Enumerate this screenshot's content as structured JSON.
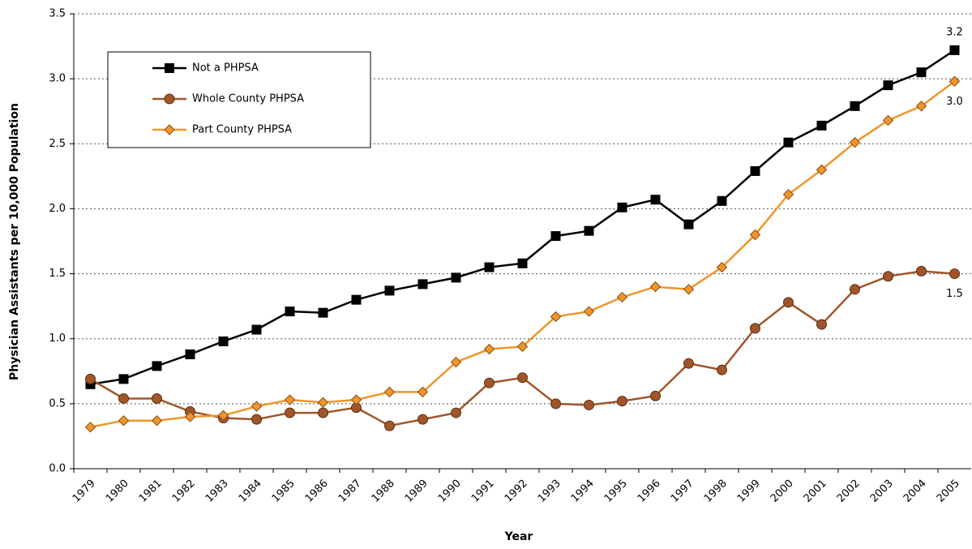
{
  "chart_data": {
    "type": "line",
    "x_label": "Year",
    "y_label": "Physician Assistants per 10,000 Population",
    "categories": [
      "1979",
      "1980",
      "1981",
      "1982",
      "1983",
      "1984",
      "1985",
      "1986",
      "1987",
      "1988",
      "1989",
      "1990",
      "1991",
      "1992",
      "1993",
      "1994",
      "1995",
      "1996",
      "1997",
      "1998",
      "1999",
      "2000",
      "2001",
      "2002",
      "2003",
      "2004",
      "2005"
    ],
    "series": [
      {
        "name": "Not a PHPSA",
        "color": "#000000",
        "marker": "square",
        "values": [
          0.65,
          0.69,
          0.79,
          0.88,
          0.98,
          1.07,
          1.21,
          1.2,
          1.3,
          1.37,
          1.42,
          1.47,
          1.55,
          1.58,
          1.79,
          1.83,
          2.01,
          2.07,
          1.88,
          2.06,
          2.29,
          2.51,
          2.64,
          2.79,
          2.95,
          3.05,
          3.22
        ],
        "value_labels": [
          null,
          null,
          null,
          null,
          null,
          null,
          null,
          null,
          null,
          null,
          null,
          null,
          null,
          null,
          null,
          null,
          null,
          null,
          null,
          null,
          null,
          null,
          null,
          null,
          null,
          null,
          "3.2"
        ]
      },
      {
        "name": "Whole County PHPSA",
        "color": "#a0562a",
        "marker": "circle",
        "values": [
          0.69,
          0.54,
          0.54,
          0.44,
          0.39,
          0.38,
          0.43,
          0.43,
          0.47,
          0.33,
          0.38,
          0.43,
          0.66,
          0.7,
          0.5,
          0.49,
          0.52,
          0.56,
          0.81,
          0.76,
          1.08,
          1.28,
          1.11,
          1.38,
          1.48,
          1.52,
          1.5
        ],
        "value_labels": [
          null,
          null,
          null,
          null,
          null,
          null,
          null,
          null,
          null,
          null,
          null,
          null,
          null,
          null,
          null,
          null,
          null,
          null,
          null,
          null,
          null,
          null,
          null,
          null,
          null,
          null,
          "1.5"
        ]
      },
      {
        "name": "Part County PHPSA",
        "color": "#f0952b",
        "marker": "diamond",
        "values": [
          0.32,
          0.37,
          0.37,
          0.4,
          0.41,
          0.48,
          0.53,
          0.51,
          0.53,
          0.59,
          0.59,
          0.82,
          0.92,
          0.94,
          1.17,
          1.21,
          1.32,
          1.4,
          1.38,
          1.55,
          1.8,
          2.11,
          2.3,
          2.51,
          2.68,
          2.79,
          2.98
        ],
        "value_labels": [
          null,
          null,
          null,
          null,
          null,
          null,
          null,
          null,
          null,
          null,
          null,
          null,
          null,
          null,
          null,
          null,
          null,
          null,
          null,
          null,
          null,
          null,
          null,
          null,
          null,
          null,
          "3.0"
        ]
      }
    ],
    "ylim": [
      0,
      3.5
    ],
    "yticks": [
      {
        "value": 0,
        "label": "0.0"
      },
      0.5,
      {
        "value": 1,
        "label": "1.0"
      },
      1.5,
      {
        "value": 2,
        "label": "2.0"
      },
      2.5,
      {
        "value": 3,
        "label": "3.0"
      },
      3.5
    ],
    "grid": true,
    "legend": "upper left"
  }
}
